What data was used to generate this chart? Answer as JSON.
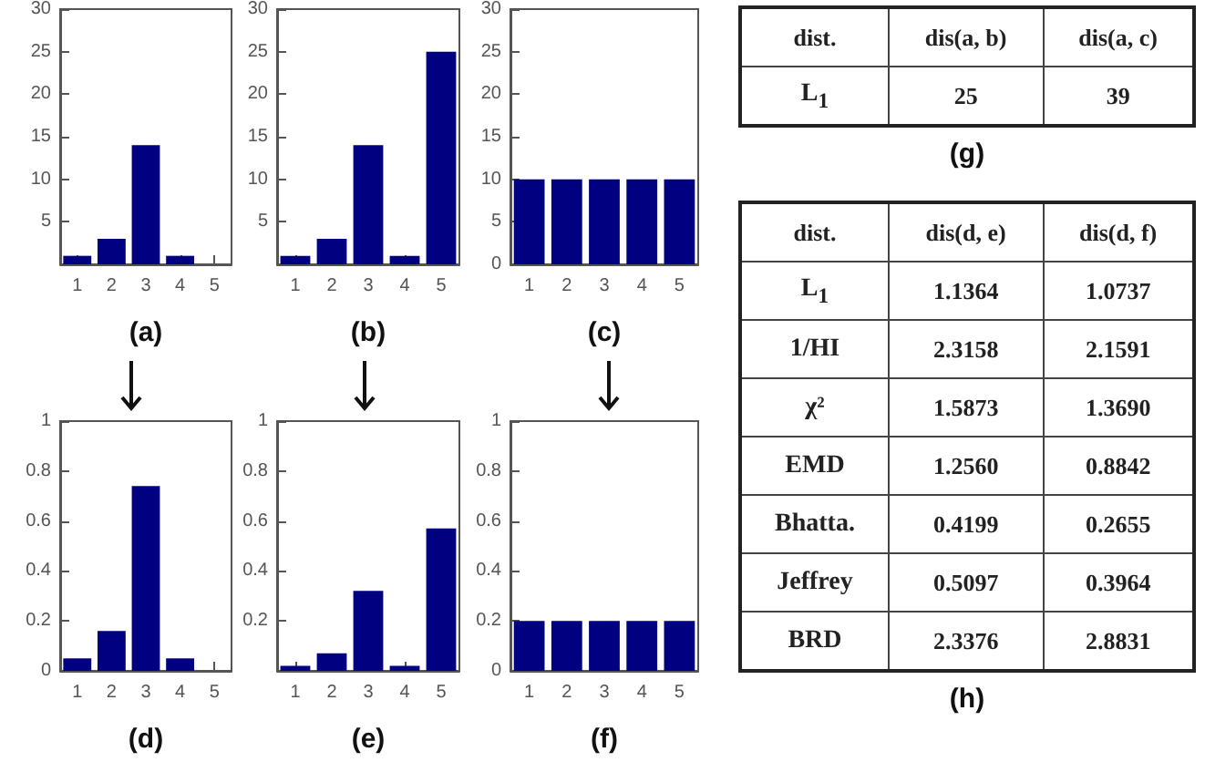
{
  "chart_data": [
    {
      "type": "bar",
      "xlabel": "(a)",
      "categories": [
        "1",
        "2",
        "3",
        "4",
        "5"
      ],
      "values": [
        1,
        3,
        14,
        1,
        0
      ],
      "color": "#000080",
      "ylim": [
        0,
        30
      ],
      "yticks": [
        5,
        10,
        15,
        20,
        25,
        30
      ]
    },
    {
      "type": "bar",
      "xlabel": "(b)",
      "categories": [
        "1",
        "2",
        "3",
        "4",
        "5"
      ],
      "values": [
        1,
        3,
        14,
        1,
        25
      ],
      "color": "#000080",
      "ylim": [
        0,
        30
      ],
      "yticks": [
        5,
        10,
        15,
        20,
        25,
        30
      ]
    },
    {
      "type": "bar",
      "xlabel": "(c)",
      "categories": [
        "1",
        "2",
        "3",
        "4",
        "5"
      ],
      "values": [
        10,
        10,
        10,
        10,
        10
      ],
      "color": "#000080",
      "ylim": [
        0,
        30
      ],
      "yticks": [
        0,
        5,
        10,
        15,
        20,
        25,
        30
      ]
    },
    {
      "type": "bar",
      "xlabel": "(d)",
      "categories": [
        "1",
        "2",
        "3",
        "4",
        "5"
      ],
      "values": [
        0.05,
        0.16,
        0.74,
        0.05,
        0
      ],
      "color": "#000080",
      "ylim": [
        0,
        1
      ],
      "yticks": [
        0,
        0.2,
        0.4,
        0.6,
        0.8,
        1
      ]
    },
    {
      "type": "bar",
      "xlabel": "(e)",
      "categories": [
        "1",
        "2",
        "3",
        "4",
        "5"
      ],
      "values": [
        0.02,
        0.07,
        0.32,
        0.02,
        0.57
      ],
      "color": "#000080",
      "ylim": [
        0,
        1
      ],
      "yticks": [
        0.2,
        0.4,
        0.6,
        0.8,
        1
      ]
    },
    {
      "type": "bar",
      "xlabel": "(f)",
      "categories": [
        "1",
        "2",
        "3",
        "4",
        "5"
      ],
      "values": [
        0.2,
        0.2,
        0.2,
        0.2,
        0.2
      ],
      "color": "#000080",
      "ylim": [
        0,
        1
      ],
      "yticks": [
        0,
        0.2,
        0.4,
        0.6,
        0.8,
        1
      ]
    },
    {
      "type": "other",
      "xlabel": "(g)",
      "ylabel": "dist.",
      "categories": [
        "dis(a, b)",
        "dis(a, c)"
      ],
      "y_categories": [
        "L$_{1}$"
      ],
      "cell_labels": [
        [
          "25",
          "39"
        ]
      ]
    },
    {
      "type": "other",
      "xlabel": "(h)",
      "ylabel": "dist.",
      "categories": [
        "dis(d, e)",
        "dis(d, f)"
      ],
      "y_categories": [
        "L$_{1}$",
        "1/HI",
        "χ²",
        "EMD",
        "Bhatta.",
        "Jeffrey",
        "BRD"
      ],
      "cell_labels": [
        [
          "1.1364",
          "1.0737"
        ],
        [
          "2.3158",
          "2.1591"
        ],
        [
          "1.5873",
          "1.3690"
        ],
        [
          "1.2560",
          "0.8842"
        ],
        [
          "0.4199",
          "0.2655"
        ],
        [
          "0.5097",
          "0.3964"
        ],
        [
          "2.3376",
          "2.8831"
        ]
      ]
    }
  ]
}
